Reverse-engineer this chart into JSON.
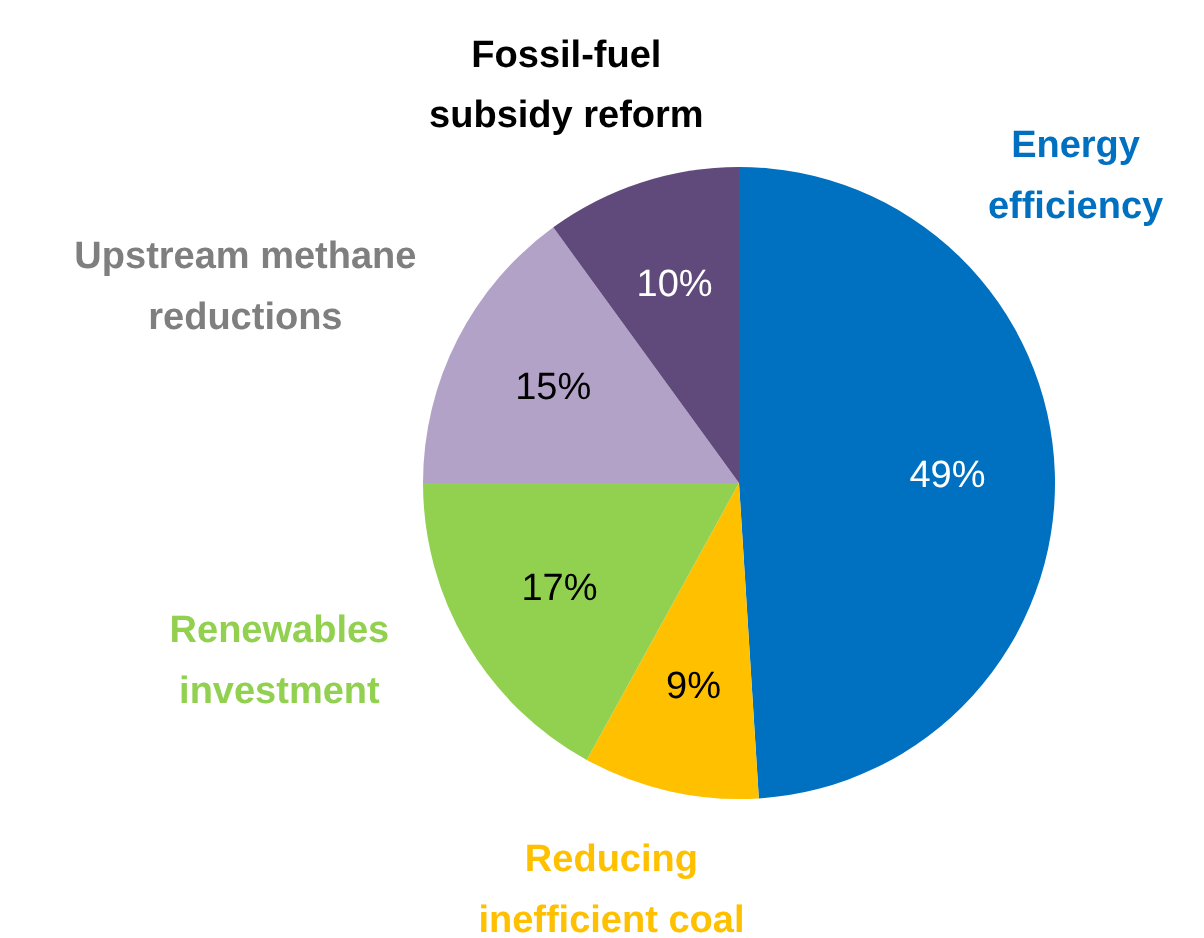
{
  "chart_data": {
    "type": "pie",
    "categories": [
      "Energy efficiency",
      "Reducing inefficient coal",
      "Renewables investment",
      "Upstream methane reductions",
      "Fossil-fuel subsidy reform"
    ],
    "values": [
      49,
      9,
      17,
      15,
      10
    ],
    "colors": [
      "#0070c0",
      "#ffc000",
      "#92d050",
      "#b3a2c7",
      "#604a7b"
    ],
    "value_labels": [
      "49%",
      "9%",
      "17%",
      "15%",
      "10%"
    ]
  }
}
